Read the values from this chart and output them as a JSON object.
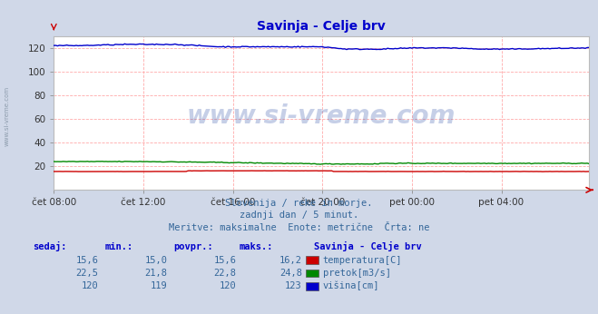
{
  "title": "Savinja - Celje brv",
  "title_color": "#0000cc",
  "bg_color": "#d0d8e8",
  "plot_bg_color": "#ffffff",
  "grid_color": "#ffaaaa",
  "grid_style": "--",
  "ylim": [
    0,
    130
  ],
  "yticks": [
    20,
    40,
    60,
    80,
    100,
    120
  ],
  "n_points": 288,
  "temp_color": "#cc0000",
  "pretok_color": "#008800",
  "visina_color": "#0000cc",
  "watermark": "www.si-vreme.com",
  "watermark_color": "#3355aa",
  "watermark_alpha": 0.28,
  "subtitle1": "Slovenija / reke in morje.",
  "subtitle2": "zadnji dan / 5 minut.",
  "subtitle3": "Meritve: maksimalne  Enote: metrične  Črta: ne",
  "subtitle_color": "#336699",
  "table_headers": [
    "sedaj:",
    "min.:",
    "povpr.:",
    "maks.:"
  ],
  "table_rows": [
    [
      "15,6",
      "15,0",
      "15,6",
      "16,2",
      "temperatura[C]",
      "#cc0000"
    ],
    [
      "22,5",
      "21,8",
      "22,8",
      "24,8",
      "pretok[m3/s]",
      "#008800"
    ],
    [
      "120",
      "119",
      "120",
      "123",
      "višina[cm]",
      "#0000cc"
    ]
  ],
  "station_label": "Savinja - Celje brv",
  "xtick_labels": [
    "čet 08:00",
    "čet 12:00",
    "čet 16:00",
    "čet 20:00",
    "pet 00:00",
    "pet 04:00"
  ],
  "xtick_positions": [
    0,
    48,
    96,
    144,
    192,
    240
  ],
  "sidebar_text": "www.si-vreme.com",
  "sidebar_color": "#778899"
}
